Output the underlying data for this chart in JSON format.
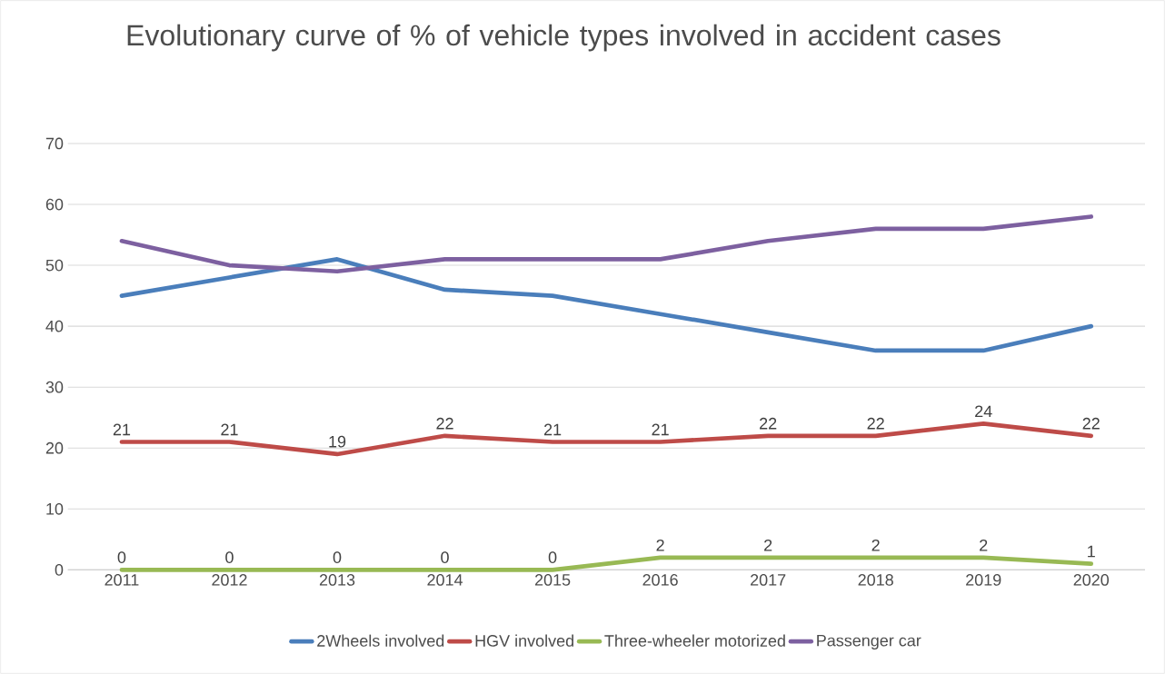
{
  "chart_data": {
    "type": "line",
    "title": "Evolutionary curve of % of vehicle types involved in accident cases",
    "categories": [
      "2011",
      "2012",
      "2013",
      "2014",
      "2015",
      "2016",
      "2017",
      "2018",
      "2019",
      "2020"
    ],
    "series": [
      {
        "name": "2Wheels involved",
        "color": "#4a7ebb",
        "values": [
          45,
          48,
          51,
          46,
          45,
          42,
          39,
          36,
          36,
          40
        ]
      },
      {
        "name": "HGV involved",
        "color": "#be4b48",
        "values": [
          21,
          21,
          19,
          22,
          21,
          21,
          22,
          22,
          24,
          22
        ],
        "value_labels": [
          "21",
          "21",
          "19",
          "22",
          "21",
          "21",
          "22",
          "22",
          "24",
          "22"
        ]
      },
      {
        "name": "Three-wheeler motorized",
        "color": "#98b954",
        "values": [
          0,
          0,
          0,
          0,
          0,
          2,
          2,
          2,
          2,
          1
        ],
        "value_labels": [
          "0",
          "0",
          "0",
          "0",
          "0",
          "2",
          "2",
          "2",
          "2",
          "1"
        ]
      },
      {
        "name": "Passenger car",
        "color": "#7d60a0",
        "values": [
          54,
          50,
          49,
          51,
          51,
          51,
          54,
          56,
          56,
          58
        ]
      }
    ],
    "ylim": [
      0,
      70
    ],
    "yticks": [
      0,
      10,
      20,
      30,
      40,
      50,
      60,
      70
    ],
    "grid": "y",
    "legend": "bottom"
  }
}
